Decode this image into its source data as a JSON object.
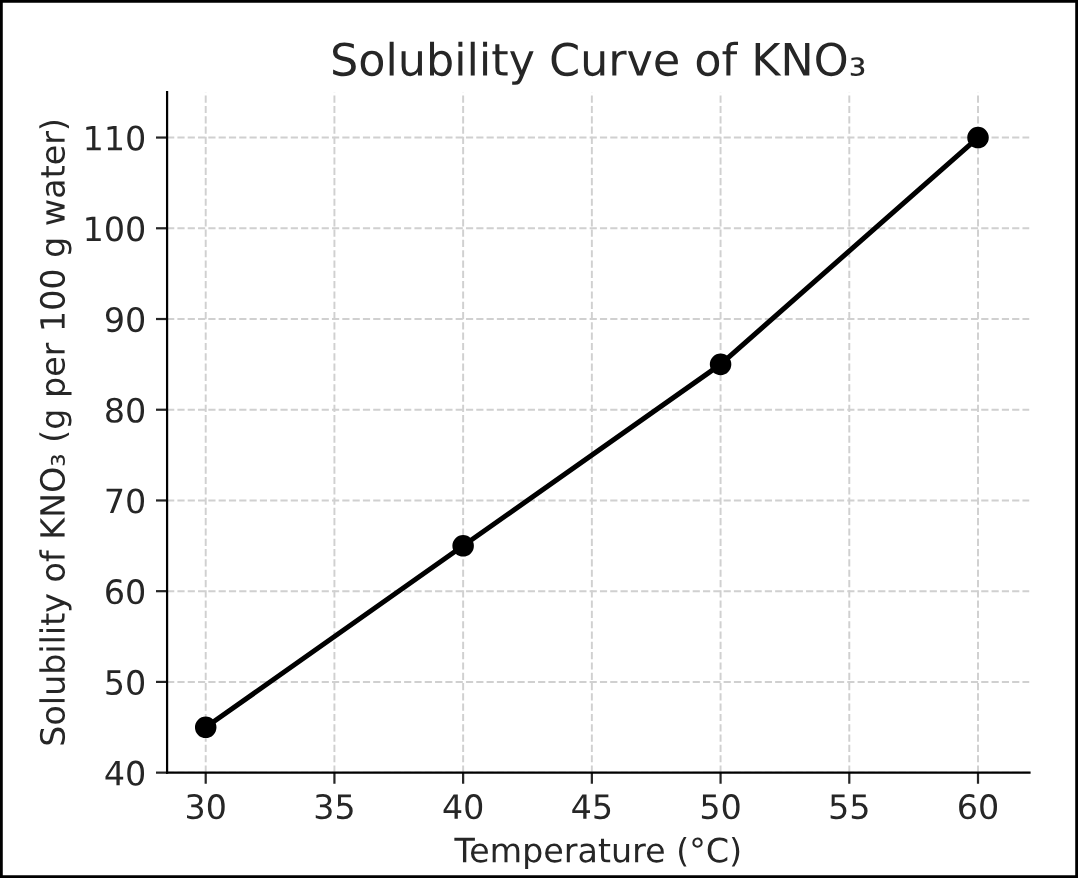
{
  "chart_data": {
    "type": "line",
    "title": "Solubility Curve of KNO₃",
    "xlabel": "Temperature (°C)",
    "ylabel": "Solubility of KNO₃ (g per 100 g water)",
    "x": [
      30,
      40,
      50,
      60
    ],
    "series": [
      {
        "color": "#000000",
        "values": [
          45,
          65,
          85,
          110
        ]
      }
    ],
    "xlim": [
      28.5,
      62
    ],
    "ylim": [
      40,
      115
    ],
    "xticks": [
      30,
      35,
      40,
      45,
      50,
      55,
      60
    ],
    "yticks": [
      40,
      50,
      60,
      70,
      80,
      90,
      100,
      110
    ],
    "grid": true,
    "marker": "circle",
    "line_style": "solid"
  }
}
